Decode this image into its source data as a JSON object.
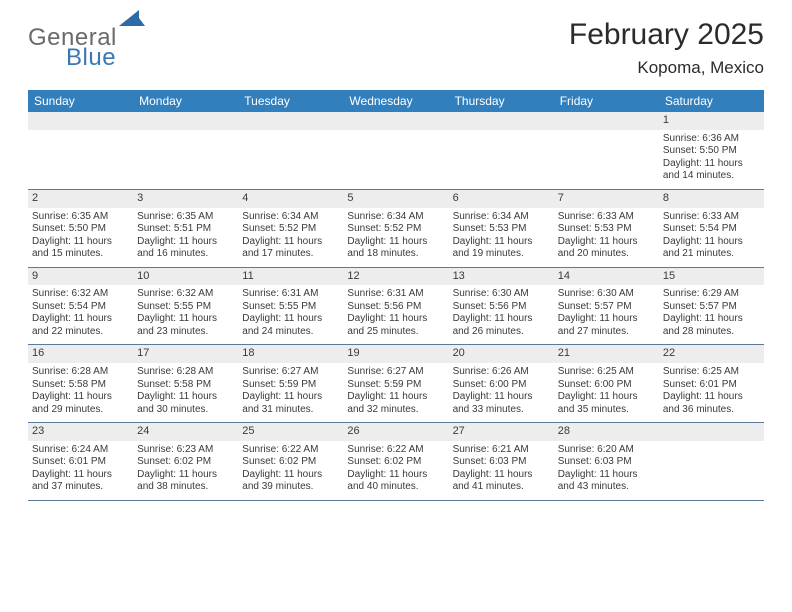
{
  "logo": {
    "word1": "General",
    "word2": "Blue",
    "text_color_gray": "#6a6a6a",
    "text_color_blue": "#3b78b5",
    "mark_color": "#2f6aa8"
  },
  "title": "February 2025",
  "subtitle": "Kopoma, Mexico",
  "colors": {
    "header_row_bg": "#327fbd",
    "header_row_text": "#ffffff",
    "daynum_bg": "#ededed",
    "week_divider": "#5b7a9a",
    "body_text": "#3a3a3a"
  },
  "days_of_week": [
    "Sunday",
    "Monday",
    "Tuesday",
    "Wednesday",
    "Thursday",
    "Friday",
    "Saturday"
  ],
  "weeks": [
    [
      null,
      null,
      null,
      null,
      null,
      null,
      {
        "n": "1",
        "sunrise": "Sunrise: 6:36 AM",
        "sunset": "Sunset: 5:50 PM",
        "day1": "Daylight: 11 hours",
        "day2": "and 14 minutes."
      }
    ],
    [
      {
        "n": "2",
        "sunrise": "Sunrise: 6:35 AM",
        "sunset": "Sunset: 5:50 PM",
        "day1": "Daylight: 11 hours",
        "day2": "and 15 minutes."
      },
      {
        "n": "3",
        "sunrise": "Sunrise: 6:35 AM",
        "sunset": "Sunset: 5:51 PM",
        "day1": "Daylight: 11 hours",
        "day2": "and 16 minutes."
      },
      {
        "n": "4",
        "sunrise": "Sunrise: 6:34 AM",
        "sunset": "Sunset: 5:52 PM",
        "day1": "Daylight: 11 hours",
        "day2": "and 17 minutes."
      },
      {
        "n": "5",
        "sunrise": "Sunrise: 6:34 AM",
        "sunset": "Sunset: 5:52 PM",
        "day1": "Daylight: 11 hours",
        "day2": "and 18 minutes."
      },
      {
        "n": "6",
        "sunrise": "Sunrise: 6:34 AM",
        "sunset": "Sunset: 5:53 PM",
        "day1": "Daylight: 11 hours",
        "day2": "and 19 minutes."
      },
      {
        "n": "7",
        "sunrise": "Sunrise: 6:33 AM",
        "sunset": "Sunset: 5:53 PM",
        "day1": "Daylight: 11 hours",
        "day2": "and 20 minutes."
      },
      {
        "n": "8",
        "sunrise": "Sunrise: 6:33 AM",
        "sunset": "Sunset: 5:54 PM",
        "day1": "Daylight: 11 hours",
        "day2": "and 21 minutes."
      }
    ],
    [
      {
        "n": "9",
        "sunrise": "Sunrise: 6:32 AM",
        "sunset": "Sunset: 5:54 PM",
        "day1": "Daylight: 11 hours",
        "day2": "and 22 minutes."
      },
      {
        "n": "10",
        "sunrise": "Sunrise: 6:32 AM",
        "sunset": "Sunset: 5:55 PM",
        "day1": "Daylight: 11 hours",
        "day2": "and 23 minutes."
      },
      {
        "n": "11",
        "sunrise": "Sunrise: 6:31 AM",
        "sunset": "Sunset: 5:55 PM",
        "day1": "Daylight: 11 hours",
        "day2": "and 24 minutes."
      },
      {
        "n": "12",
        "sunrise": "Sunrise: 6:31 AM",
        "sunset": "Sunset: 5:56 PM",
        "day1": "Daylight: 11 hours",
        "day2": "and 25 minutes."
      },
      {
        "n": "13",
        "sunrise": "Sunrise: 6:30 AM",
        "sunset": "Sunset: 5:56 PM",
        "day1": "Daylight: 11 hours",
        "day2": "and 26 minutes."
      },
      {
        "n": "14",
        "sunrise": "Sunrise: 6:30 AM",
        "sunset": "Sunset: 5:57 PM",
        "day1": "Daylight: 11 hours",
        "day2": "and 27 minutes."
      },
      {
        "n": "15",
        "sunrise": "Sunrise: 6:29 AM",
        "sunset": "Sunset: 5:57 PM",
        "day1": "Daylight: 11 hours",
        "day2": "and 28 minutes."
      }
    ],
    [
      {
        "n": "16",
        "sunrise": "Sunrise: 6:28 AM",
        "sunset": "Sunset: 5:58 PM",
        "day1": "Daylight: 11 hours",
        "day2": "and 29 minutes."
      },
      {
        "n": "17",
        "sunrise": "Sunrise: 6:28 AM",
        "sunset": "Sunset: 5:58 PM",
        "day1": "Daylight: 11 hours",
        "day2": "and 30 minutes."
      },
      {
        "n": "18",
        "sunrise": "Sunrise: 6:27 AM",
        "sunset": "Sunset: 5:59 PM",
        "day1": "Daylight: 11 hours",
        "day2": "and 31 minutes."
      },
      {
        "n": "19",
        "sunrise": "Sunrise: 6:27 AM",
        "sunset": "Sunset: 5:59 PM",
        "day1": "Daylight: 11 hours",
        "day2": "and 32 minutes."
      },
      {
        "n": "20",
        "sunrise": "Sunrise: 6:26 AM",
        "sunset": "Sunset: 6:00 PM",
        "day1": "Daylight: 11 hours",
        "day2": "and 33 minutes."
      },
      {
        "n": "21",
        "sunrise": "Sunrise: 6:25 AM",
        "sunset": "Sunset: 6:00 PM",
        "day1": "Daylight: 11 hours",
        "day2": "and 35 minutes."
      },
      {
        "n": "22",
        "sunrise": "Sunrise: 6:25 AM",
        "sunset": "Sunset: 6:01 PM",
        "day1": "Daylight: 11 hours",
        "day2": "and 36 minutes."
      }
    ],
    [
      {
        "n": "23",
        "sunrise": "Sunrise: 6:24 AM",
        "sunset": "Sunset: 6:01 PM",
        "day1": "Daylight: 11 hours",
        "day2": "and 37 minutes."
      },
      {
        "n": "24",
        "sunrise": "Sunrise: 6:23 AM",
        "sunset": "Sunset: 6:02 PM",
        "day1": "Daylight: 11 hours",
        "day2": "and 38 minutes."
      },
      {
        "n": "25",
        "sunrise": "Sunrise: 6:22 AM",
        "sunset": "Sunset: 6:02 PM",
        "day1": "Daylight: 11 hours",
        "day2": "and 39 minutes."
      },
      {
        "n": "26",
        "sunrise": "Sunrise: 6:22 AM",
        "sunset": "Sunset: 6:02 PM",
        "day1": "Daylight: 11 hours",
        "day2": "and 40 minutes."
      },
      {
        "n": "27",
        "sunrise": "Sunrise: 6:21 AM",
        "sunset": "Sunset: 6:03 PM",
        "day1": "Daylight: 11 hours",
        "day2": "and 41 minutes."
      },
      {
        "n": "28",
        "sunrise": "Sunrise: 6:20 AM",
        "sunset": "Sunset: 6:03 PM",
        "day1": "Daylight: 11 hours",
        "day2": "and 43 minutes."
      },
      null
    ]
  ]
}
